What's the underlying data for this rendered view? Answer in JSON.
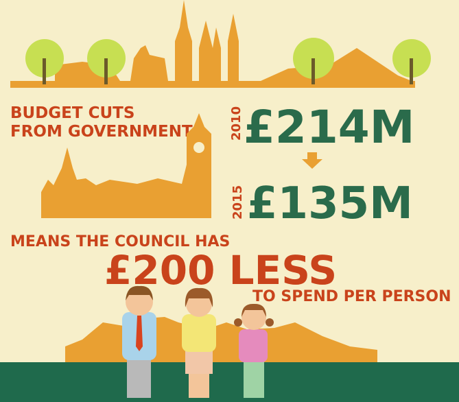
{
  "budget": {
    "heading_line1": "BUDGET CUTS",
    "heading_line2": "FROM GOVERNMENT",
    "before": {
      "year": "2010",
      "amount": "£214M"
    },
    "after": {
      "year": "2015",
      "amount": "£135M"
    }
  },
  "per_person": {
    "lead": "MEANS THE COUNCIL HAS",
    "amount": "£200 LESS",
    "tail": "TO SPEND PER PERSON"
  }
}
